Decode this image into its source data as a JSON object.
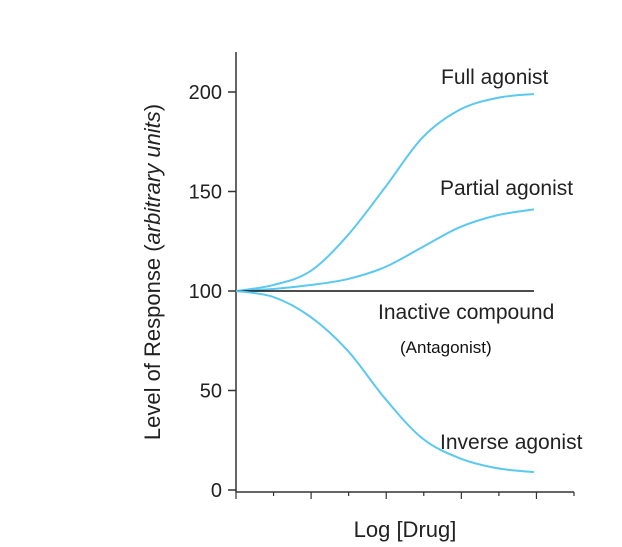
{
  "chart_data": {
    "type": "line",
    "xlabel": "Log [Drug]",
    "ylabel_prefix": "Level of Response (",
    "ylabel_italic": "arbitrary units",
    "ylabel_suffix": ")",
    "ylim": [
      0,
      220
    ],
    "xlim": [
      0,
      9
    ],
    "yticks": [
      0,
      50,
      100,
      150,
      200
    ],
    "ytick_labels": [
      "0",
      "50",
      "100",
      "150",
      "200"
    ],
    "x": [
      0,
      1,
      2,
      3,
      4,
      5,
      6,
      7,
      8
    ],
    "series": [
      {
        "name": "Full agonist",
        "values": [
          100,
          103,
          110,
          128,
          152,
          177,
          191,
          197,
          199
        ]
      },
      {
        "name": "Partial agonist",
        "values": [
          100,
          101,
          103,
          106,
          112,
          122,
          132,
          138,
          141
        ]
      },
      {
        "name": "Inactive compound",
        "values": [
          100,
          100,
          100,
          100,
          100,
          100,
          100,
          100,
          100
        ]
      },
      {
        "name": "Inverse agonist",
        "values": [
          100,
          97,
          87,
          70,
          46,
          26,
          16,
          11,
          9
        ]
      }
    ],
    "annotations": [
      {
        "text": "(Antagonist)"
      }
    ],
    "grid": false,
    "colors": {
      "curve": "#5bc8f0",
      "axis": "#333333",
      "inactive": "#111111"
    }
  }
}
